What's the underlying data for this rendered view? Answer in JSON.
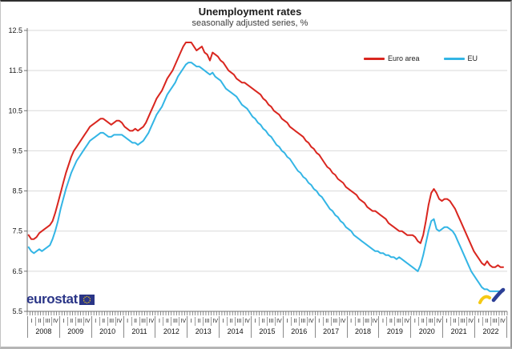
{
  "branding": {
    "logo_text": "eurostat",
    "flag_color": "#2a3587",
    "star_color": "#ffd617",
    "indicator_yellow": "#f5c913",
    "indicator_blue": "#2c3f96"
  },
  "chart_data": {
    "type": "line",
    "title": "Unemployment rates",
    "subtitle": "seasonally adjusted series, %",
    "unit": "%",
    "frequency": "monthly",
    "x_range": [
      "2008-01",
      "2022-11"
    ],
    "years": [
      "2008",
      "2009",
      "2010",
      "2011",
      "2012",
      "2013",
      "2014",
      "2015",
      "2016",
      "2017",
      "2018",
      "2019",
      "2020",
      "2021",
      "2022"
    ],
    "quarter_labels": [
      "I",
      "II",
      "III",
      "IV"
    ],
    "ylim": [
      5.5,
      12.5
    ],
    "y_ticks": [
      5.5,
      6.5,
      7.5,
      8.5,
      9.5,
      10.5,
      11.5,
      12.5
    ],
    "grid": true,
    "legend_position": "top-right",
    "colors": {
      "grid": "#d9d9d9",
      "axis": "#6f6f6f",
      "text": "#1a1a1a"
    },
    "series": [
      {
        "name": "Euro area",
        "color": "#d9261f",
        "values": [
          7.4,
          7.3,
          7.3,
          7.35,
          7.45,
          7.5,
          7.55,
          7.6,
          7.65,
          7.75,
          7.95,
          8.2,
          8.45,
          8.7,
          8.95,
          9.15,
          9.35,
          9.5,
          9.6,
          9.7,
          9.8,
          9.9,
          10.0,
          10.1,
          10.15,
          10.2,
          10.25,
          10.3,
          10.3,
          10.25,
          10.2,
          10.15,
          10.2,
          10.25,
          10.25,
          10.2,
          10.1,
          10.05,
          10.0,
          10.0,
          10.05,
          10.0,
          10.05,
          10.1,
          10.2,
          10.35,
          10.5,
          10.65,
          10.8,
          10.9,
          11.0,
          11.15,
          11.3,
          11.4,
          11.5,
          11.65,
          11.8,
          11.95,
          12.1,
          12.2,
          12.2,
          12.2,
          12.1,
          12.0,
          12.05,
          12.1,
          11.95,
          11.9,
          11.75,
          11.95,
          11.9,
          11.85,
          11.75,
          11.7,
          11.6,
          11.5,
          11.45,
          11.4,
          11.3,
          11.25,
          11.2,
          11.2,
          11.15,
          11.1,
          11.05,
          11.0,
          10.95,
          10.9,
          10.8,
          10.75,
          10.65,
          10.6,
          10.5,
          10.45,
          10.4,
          10.3,
          10.25,
          10.2,
          10.1,
          10.05,
          10.0,
          9.95,
          9.9,
          9.85,
          9.75,
          9.7,
          9.6,
          9.55,
          9.45,
          9.4,
          9.3,
          9.2,
          9.1,
          9.05,
          8.95,
          8.9,
          8.8,
          8.75,
          8.7,
          8.6,
          8.55,
          8.5,
          8.45,
          8.4,
          8.3,
          8.25,
          8.2,
          8.1,
          8.05,
          8.0,
          8.0,
          7.95,
          7.9,
          7.85,
          7.8,
          7.7,
          7.65,
          7.6,
          7.55,
          7.5,
          7.5,
          7.45,
          7.4,
          7.4,
          7.4,
          7.35,
          7.25,
          7.2,
          7.4,
          7.75,
          8.15,
          8.45,
          8.55,
          8.45,
          8.3,
          8.25,
          8.3,
          8.3,
          8.25,
          8.15,
          8.05,
          7.9,
          7.75,
          7.6,
          7.45,
          7.3,
          7.15,
          7.0,
          6.9,
          6.8,
          6.7,
          6.65,
          6.75,
          6.65,
          6.6,
          6.6,
          6.65,
          6.6,
          6.6
        ]
      },
      {
        "name": "EU",
        "color": "#33b5e5",
        "values": [
          7.1,
          7.0,
          6.95,
          7.0,
          7.05,
          7.0,
          7.05,
          7.1,
          7.15,
          7.3,
          7.5,
          7.75,
          8.05,
          8.3,
          8.55,
          8.75,
          8.95,
          9.1,
          9.25,
          9.35,
          9.45,
          9.55,
          9.65,
          9.75,
          9.8,
          9.85,
          9.9,
          9.95,
          9.95,
          9.9,
          9.85,
          9.85,
          9.9,
          9.9,
          9.9,
          9.9,
          9.85,
          9.8,
          9.75,
          9.7,
          9.7,
          9.65,
          9.7,
          9.75,
          9.85,
          9.95,
          10.1,
          10.25,
          10.4,
          10.5,
          10.6,
          10.75,
          10.9,
          11.0,
          11.1,
          11.2,
          11.35,
          11.45,
          11.55,
          11.65,
          11.7,
          11.7,
          11.65,
          11.6,
          11.6,
          11.55,
          11.5,
          11.45,
          11.4,
          11.45,
          11.35,
          11.3,
          11.25,
          11.15,
          11.05,
          11.0,
          10.95,
          10.9,
          10.85,
          10.75,
          10.65,
          10.6,
          10.55,
          10.45,
          10.35,
          10.3,
          10.2,
          10.15,
          10.05,
          10.0,
          9.9,
          9.85,
          9.75,
          9.65,
          9.6,
          9.5,
          9.45,
          9.35,
          9.3,
          9.2,
          9.1,
          9.0,
          8.95,
          8.85,
          8.8,
          8.7,
          8.65,
          8.55,
          8.5,
          8.4,
          8.35,
          8.25,
          8.15,
          8.05,
          8.0,
          7.9,
          7.85,
          7.75,
          7.7,
          7.6,
          7.55,
          7.5,
          7.4,
          7.35,
          7.3,
          7.25,
          7.2,
          7.15,
          7.1,
          7.05,
          7.0,
          7.0,
          6.95,
          6.95,
          6.9,
          6.9,
          6.85,
          6.85,
          6.8,
          6.85,
          6.8,
          6.75,
          6.7,
          6.65,
          6.6,
          6.55,
          6.5,
          6.65,
          6.9,
          7.2,
          7.5,
          7.75,
          7.8,
          7.55,
          7.5,
          7.55,
          7.6,
          7.6,
          7.55,
          7.5,
          7.4,
          7.25,
          7.1,
          6.95,
          6.8,
          6.65,
          6.5,
          6.4,
          6.3,
          6.2,
          6.1,
          6.05,
          6.05,
          6.0,
          6.0,
          6.0,
          6.0,
          6.0,
          6.0
        ]
      }
    ]
  }
}
